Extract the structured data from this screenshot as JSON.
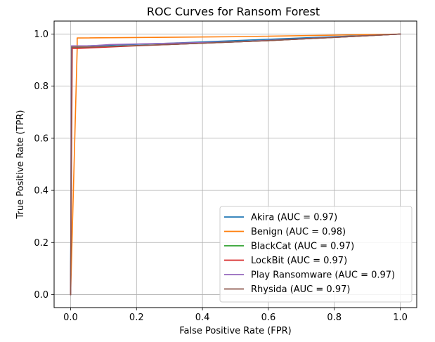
{
  "chart_data": {
    "type": "line",
    "title": "ROC Curves for Ransom Forest",
    "xlabel": "False Positive Rate (FPR)",
    "ylabel": "True Positive Rate (TPR)",
    "xlim": [
      -0.05,
      1.05
    ],
    "ylim": [
      -0.05,
      1.05
    ],
    "xticks": [
      0.0,
      0.2,
      0.4,
      0.6,
      0.8,
      1.0
    ],
    "yticks": [
      0.0,
      0.2,
      0.4,
      0.6,
      0.8,
      1.0
    ],
    "xtick_labels": [
      "0.0",
      "0.2",
      "0.4",
      "0.6",
      "0.8",
      "1.0"
    ],
    "ytick_labels": [
      "0.0",
      "0.2",
      "0.4",
      "0.6",
      "0.8",
      "1.0"
    ],
    "grid": true,
    "legend_position": "lower-right",
    "series": [
      {
        "name": "Akira (AUC = 0.97)",
        "color": "#1f77b4",
        "x": [
          0.0,
          0.003,
          0.05,
          0.3,
          0.6,
          1.0
        ],
        "y": [
          0.0,
          0.955,
          0.955,
          0.965,
          0.98,
          1.0
        ]
      },
      {
        "name": "Benign (AUC = 0.98)",
        "color": "#ff7f0e",
        "x": [
          0.0,
          0.02,
          0.02,
          0.5,
          1.0
        ],
        "y": [
          0.0,
          0.945,
          0.985,
          0.99,
          1.0
        ]
      },
      {
        "name": "BlackCat (AUC = 0.97)",
        "color": "#2ca02c",
        "x": [
          0.0,
          0.004,
          0.05,
          0.3,
          0.6,
          1.0
        ],
        "y": [
          0.0,
          0.95,
          0.95,
          0.96,
          0.975,
          1.0
        ]
      },
      {
        "name": "LockBit (AUC = 0.97)",
        "color": "#d62728",
        "x": [
          0.0,
          0.005,
          0.02,
          0.2,
          0.6,
          1.0
        ],
        "y": [
          0.0,
          0.945,
          0.945,
          0.955,
          0.975,
          1.0
        ]
      },
      {
        "name": "Play Ransomware (AUC = 0.97)",
        "color": "#9467bd",
        "x": [
          0.0,
          0.003,
          0.06,
          0.12,
          0.5,
          1.0
        ],
        "y": [
          0.0,
          0.955,
          0.955,
          0.96,
          0.97,
          1.0
        ]
      },
      {
        "name": "Rhysida (AUC = 0.97)",
        "color": "#8c564b",
        "x": [
          0.0,
          0.004,
          0.05,
          0.3,
          0.6,
          1.0
        ],
        "y": [
          0.0,
          0.95,
          0.95,
          0.96,
          0.975,
          1.0
        ]
      }
    ]
  }
}
